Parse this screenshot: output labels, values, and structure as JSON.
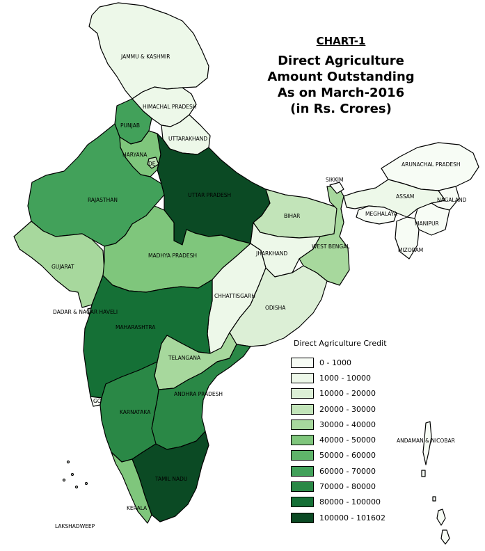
{
  "title": {
    "chart_no": "CHART-1",
    "lines": [
      "Direct Agriculture",
      "Amount Outstanding",
      "As on March-2016",
      "(in Rs. Crores)"
    ]
  },
  "legend": {
    "title": "Direct Agriculture Credit",
    "classes": [
      {
        "range": "0 - 1000",
        "color": "#f7fcf5"
      },
      {
        "range": "1000 - 10000",
        "color": "#edf8e9"
      },
      {
        "range": "10000 - 20000",
        "color": "#dcefd6"
      },
      {
        "range": "20000 - 30000",
        "color": "#c2e4b9"
      },
      {
        "range": "30000 - 40000",
        "color": "#a7d89d"
      },
      {
        "range": "40000 - 50000",
        "color": "#7fc67c"
      },
      {
        "range": "50000 - 60000",
        "color": "#5fb46a"
      },
      {
        "range": "60000 - 70000",
        "color": "#42a15a"
      },
      {
        "range": "70000 - 80000",
        "color": "#2a8846"
      },
      {
        "range": "80000 - 100000",
        "color": "#157036"
      },
      {
        "range": "100000 - 101602",
        "color": "#0b4a24"
      }
    ]
  },
  "regions": [
    {
      "name": "JAMMU & KASHMIR",
      "class": 1
    },
    {
      "name": "HIMACHAL PRADESH",
      "class": 1
    },
    {
      "name": "PUNJAB",
      "class": 7
    },
    {
      "name": "UTTARAKHAND",
      "class": 1
    },
    {
      "name": "HARYANA",
      "class": 5
    },
    {
      "name": "DELHI",
      "class": 3
    },
    {
      "name": "RAJASTHAN",
      "class": 7
    },
    {
      "name": "UTTAR PRADESH",
      "class": 10
    },
    {
      "name": "GUJARAT",
      "class": 4
    },
    {
      "name": "MADHYA PRADESH",
      "class": 5
    },
    {
      "name": "BIHAR",
      "class": 3
    },
    {
      "name": "JHARKHAND",
      "class": 1
    },
    {
      "name": "WEST BENGAL",
      "class": 4
    },
    {
      "name": "CHHATTISGARH",
      "class": 1
    },
    {
      "name": "ODISHA",
      "class": 2
    },
    {
      "name": "MAHARASHTRA",
      "class": 9
    },
    {
      "name": "TELANGANA",
      "class": 4
    },
    {
      "name": "ANDHRA PRADESH",
      "class": 8
    },
    {
      "name": "KARNATAKA",
      "class": 8
    },
    {
      "name": "GOA",
      "class": 0
    },
    {
      "name": "KERALA",
      "class": 5
    },
    {
      "name": "TAMIL NADU",
      "class": 10
    },
    {
      "name": "SIKKIM",
      "class": 0
    },
    {
      "name": "ARUNACHAL PRADESH",
      "class": 0
    },
    {
      "name": "ASSAM",
      "class": 1
    },
    {
      "name": "NAGALAND",
      "class": 0
    },
    {
      "name": "MEGHALAYA",
      "class": 0
    },
    {
      "name": "MANIPUR",
      "class": 0
    },
    {
      "name": "MIZORAM",
      "class": 0
    },
    {
      "name": "DADAR & NAGAR HAVELI",
      "class": 0
    },
    {
      "name": "LAKSHADWEEP",
      "class": 0
    },
    {
      "name": "ANDAMAN & NICOBAR",
      "class": 0
    }
  ],
  "visible_labels": {
    "JAMMU & KASHMIR": "JAMMU & KASHMIR",
    "HIMACHAL PRADESH": "HIMACHAL PRADESH",
    "PUNJAB": "PUNJAB",
    "UTTARAKHAND": "UTTARAKHAND",
    "HARYANA": "HARYANA",
    "DELHI": "DE",
    "RAJASTHAN": "RAJASTHAN",
    "UTTAR PRADESH": "UTTAR PRADESH",
    "GUJARAT": "GUJARAT",
    "MADHYA PRADESH": "MADHYA PRADESH",
    "BIHAR": "BIHAR",
    "JHARKHAND": "JHARKHAND",
    "WEST BENGAL": "WEST BENGAL",
    "CHHATTISGARH": "CHHATTISGARH",
    "ODISHA": "ODISHA",
    "MAHARASHTRA": "MAHARASHTRA",
    "TELANGANA": "TELANGANA",
    "ANDHRA PRADESH": "ANDHRA PRADESH",
    "KARNATAKA": "KARNATAKA",
    "GOA": "GO",
    "KERALA": "KERALA",
    "TAMIL NADU": "TAMIL NADU",
    "SIKKIM": "SIKKIM",
    "ARUNACHAL PRADESH": "ARUNACHAL PRADESH",
    "ASSAM": "ASSAM",
    "NAGALAND": "NAGALAND",
    "MEGHALAYA": "MEGHALAYA",
    "MANIPUR": "MANIPUR",
    "MIZORAM": "MIZORAM",
    "DADAR & NAGAR HAVELI": "DADAR & NAGAR HAVELI",
    "LAKSHADWEEP": "LAKSHADWEEP",
    "ANDAMAN & NICOBAR": "ANDAMAN & NICOBAR"
  }
}
